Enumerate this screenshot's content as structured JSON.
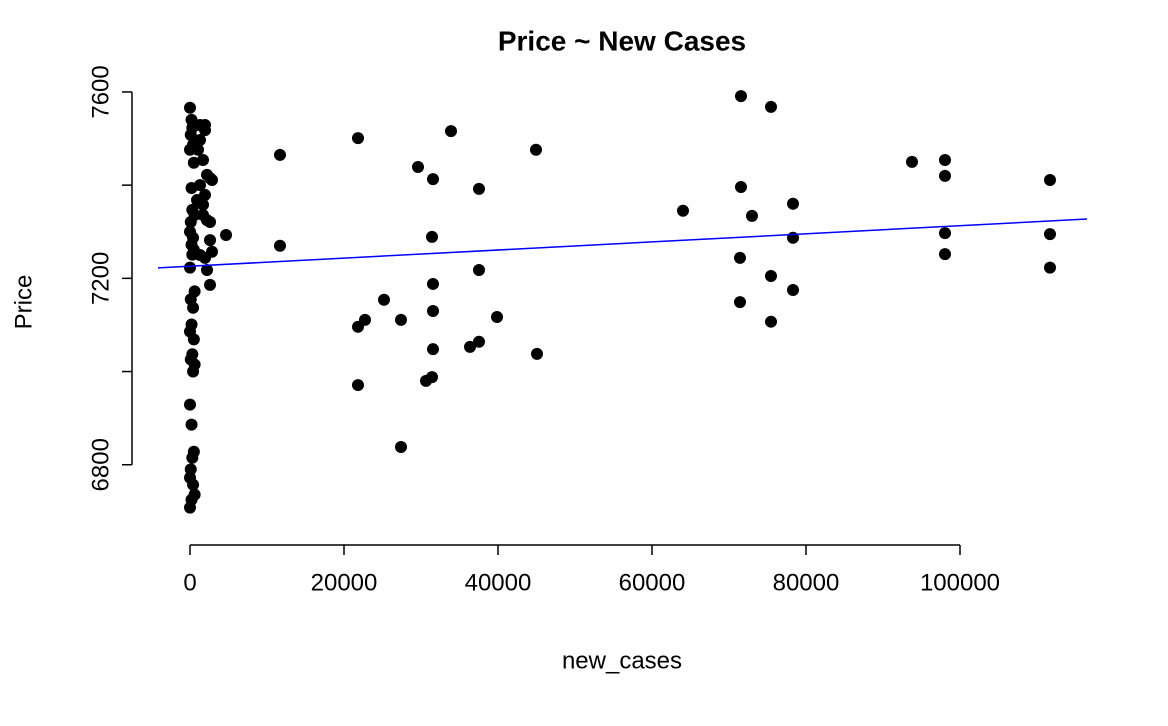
{
  "chart_data": {
    "type": "scatter",
    "title": "Price ~ New Cases",
    "x_label": "new_cases",
    "y_label": "Price",
    "color": "#000000",
    "x": [
      0,
      200,
      300,
      100,
      400,
      0,
      500,
      200,
      300,
      600,
      100,
      0,
      400,
      200,
      500,
      300,
      0,
      600,
      100,
      400,
      200,
      0,
      500,
      300,
      100,
      600,
      400,
      0,
      200,
      500,
      300,
      100,
      0,
      400,
      600,
      200,
      0,
      1300,
      1950,
      1300,
      1950,
      1040,
      1690,
      2210,
      1300,
      1950,
      2600,
      2860,
      1690,
      2210,
      2600,
      1300,
      1950,
      2600,
      2210,
      2600,
      2860,
      4680,
      910,
      1690,
      11688,
      11688,
      21818,
      21818,
      21818,
      22727,
      25195,
      27403,
      27403,
      29610,
      30649,
      31429,
      31429,
      31558,
      31558,
      31558,
      31558,
      33896,
      36364,
      37532,
      37532,
      37532,
      39870,
      44935,
      45065,
      64026,
      71558,
      71558,
      71429,
      71429,
      72987,
      75455,
      75455,
      75455,
      78312,
      78312,
      78312,
      93766,
      98052,
      98052,
      98052,
      98052,
      111688,
      111688,
      111688
    ],
    "y": [
      7566,
      7540,
      7523,
      7508,
      7487,
      7476,
      7448,
      7394,
      7347,
      7336,
      7321,
      7300,
      7287,
      7272,
      7261,
      7251,
      7223,
      7172,
      7155,
      7137,
      7101,
      7086,
      7069,
      7037,
      7026,
      7015,
      7000,
      6929,
      6886,
      6828,
      6815,
      6790,
      6772,
      6757,
      6736,
      6725,
      6708,
      7529,
      7529,
      7497,
      7518,
      7476,
      7454,
      7422,
      7400,
      7379,
      7415,
      7411,
      7336,
      7325,
      7321,
      7250,
      7244,
      7282,
      7218,
      7186,
      7257,
      7293,
      7368,
      7358,
      7465,
      7270,
      7501,
      7096,
      6971,
      7111,
      7154,
      7111,
      6838,
      7439,
      6980,
      6988,
      7289,
      7413,
      7188,
      7130,
      7048,
      7516,
      7053,
      7064,
      7392,
      7218,
      7117,
      7476,
      7038,
      7345,
      7591,
      7396,
      7244,
      7149,
      7334,
      7568,
      7205,
      7107,
      7360,
      7287,
      7175,
      7450,
      7454,
      7420,
      7297,
      7252,
      7411,
      7295,
      7223
    ],
    "trend_line": {
      "intercept": 7226,
      "slope": 0.00087,
      "color": "#0000ff"
    },
    "xlim": [
      -4156,
      116494
    ],
    "ylim": [
      6675,
      7625
    ],
    "xticks": [
      0,
      20000,
      40000,
      60000,
      80000,
      100000
    ],
    "yticks": [
      6800,
      7000,
      7200,
      7400,
      7600
    ]
  }
}
